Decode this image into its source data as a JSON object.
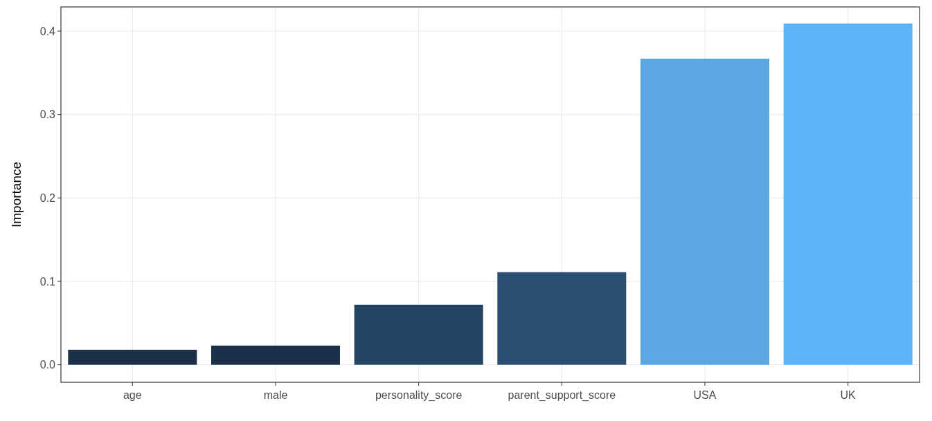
{
  "chart_data": {
    "type": "bar",
    "ylabel": "Importance",
    "categories": [
      "age",
      "male",
      "personality_score",
      "parent_support_score",
      "USA",
      "UK"
    ],
    "values": [
      0.018,
      0.023,
      0.072,
      0.111,
      0.367,
      0.409
    ],
    "colors": [
      "#1b2f47",
      "#1c3049",
      "#234463",
      "#2a4f72",
      "#5aa7e1",
      "#5cb3f5"
    ],
    "ylim": [
      -0.021,
      0.429
    ],
    "yticks": [
      {
        "value": 0,
        "label": "0.0"
      },
      0.1,
      0.2,
      0.3,
      0.4
    ],
    "grid": true
  }
}
